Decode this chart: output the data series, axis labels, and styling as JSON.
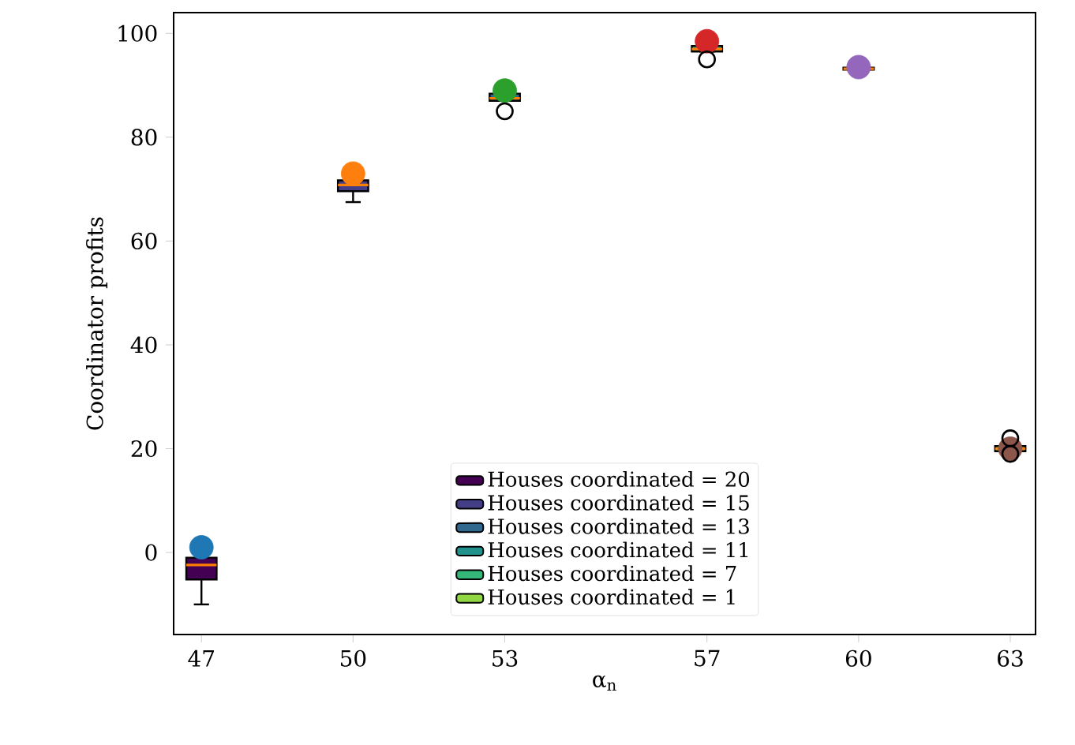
{
  "chart_data": {
    "type": "box",
    "xlabel": "α$_{n}$",
    "ylabel": "Coordinator profits",
    "xlim": [
      46.45,
      63.5
    ],
    "ylim": [
      -15.8,
      104
    ],
    "xticks": [
      47,
      50,
      53,
      57,
      60,
      63
    ],
    "yticks": [
      0,
      20,
      40,
      60,
      80,
      100
    ],
    "legend": "bottom",
    "grid": false,
    "series": [
      {
        "name": "Houses coordinated = 20",
        "color": "#440154",
        "x": [
          47
        ],
        "boxes": [
          {
            "low": -10,
            "q1": -5.2,
            "median": -2.4,
            "q3": -1,
            "high": 2.4
          }
        ]
      },
      {
        "name": "Houses coordinated = 15",
        "color": "#433e85",
        "x": [
          50
        ],
        "boxes": [
          {
            "low": 67.5,
            "q1": 69.6,
            "median": 70.8,
            "q3": 71.7,
            "high": 73
          }
        ]
      },
      {
        "name": "Houses coordinated = 13",
        "color": "#31688e",
        "x": [
          53
        ],
        "boxes": [
          {
            "low": 87,
            "q1": 87,
            "median": 87.5,
            "q3": 88.4,
            "high": 89,
            "outliers": [
              85
            ]
          }
        ]
      },
      {
        "name": "Houses coordinated = 11",
        "color": "#21918c",
        "x": [
          57
        ],
        "boxes": [
          {
            "low": 96.5,
            "q1": 96.5,
            "median": 97,
            "q3": 97.6,
            "high": 97.6,
            "outliers": [
              95
            ]
          }
        ]
      },
      {
        "name": "Houses coordinated = 7",
        "color": "#35b779",
        "x": [
          60
        ],
        "boxes": [
          {
            "low": 92.8,
            "q1": 93,
            "median": 93.2,
            "q3": 93.4,
            "high": 93.6
          }
        ]
      },
      {
        "name": "Houses coordinated = 1",
        "color": "#90d743",
        "x": [
          63
        ],
        "boxes": [
          {
            "low": 19.5,
            "q1": 19.5,
            "median": 20,
            "q3": 20.5,
            "high": 20.5,
            "outliers": [
              22,
              19
            ]
          }
        ]
      },
      {
        "type": "scatter",
        "x": [
          47,
          50,
          53,
          57,
          60,
          63
        ],
        "values": [
          1,
          73,
          89,
          98.5,
          93.5,
          20
        ],
        "colors": [
          "#1f77b4",
          "#ff7f0e",
          "#2ca02c",
          "#d62728",
          "#9467bd",
          "#8c564b"
        ]
      }
    ]
  }
}
